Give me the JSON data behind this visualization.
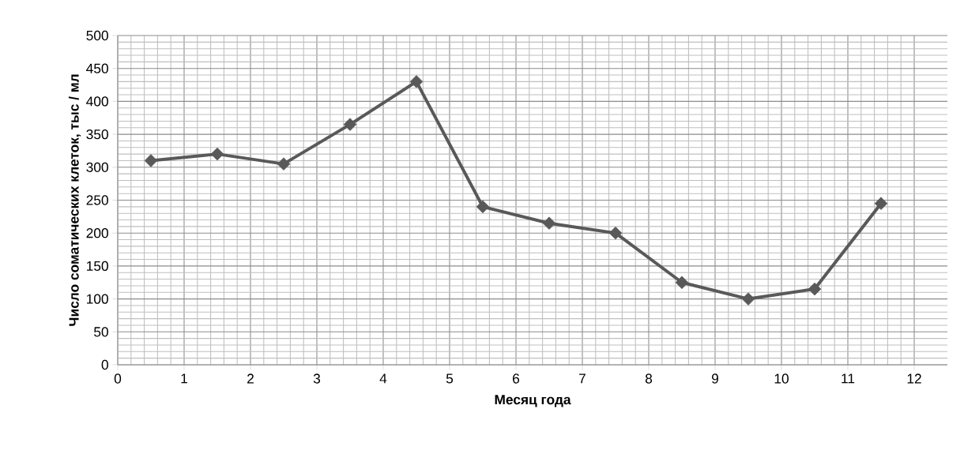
{
  "chart_data": {
    "type": "line",
    "xlabel": "Месяц года",
    "ylabel": "Число соматических клеток, тыс / мл",
    "x": [
      0.5,
      1.5,
      2.5,
      3.5,
      4.5,
      5.5,
      6.5,
      7.5,
      8.5,
      9.5,
      10.5,
      11.5
    ],
    "series": [
      {
        "color": "#595959",
        "values": [
          310,
          320,
          305,
          365,
          430,
          240,
          215,
          200,
          125,
          100,
          115,
          245
        ]
      }
    ],
    "xlim": [
      0,
      12.5
    ],
    "xticks": [
      0,
      1,
      2,
      3,
      4,
      5,
      6,
      7,
      8,
      9,
      10,
      11,
      12
    ],
    "ylim": [
      0,
      500
    ],
    "yticks": [
      0,
      50,
      100,
      150,
      200,
      250,
      300,
      350,
      400,
      450,
      500
    ],
    "grid": true,
    "marker": "diamond",
    "line_style": "solid"
  }
}
